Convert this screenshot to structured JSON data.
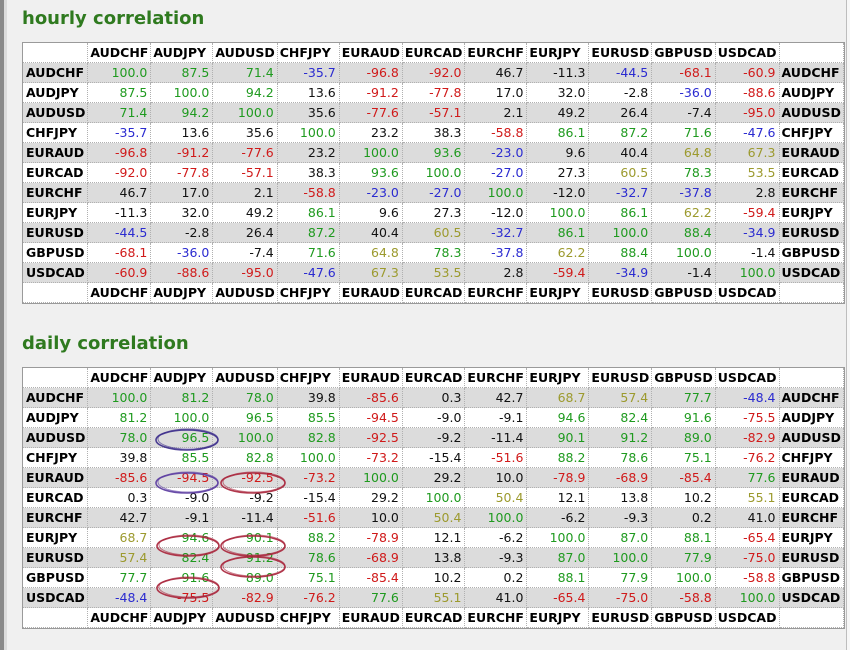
{
  "pairs": [
    "AUDCHF",
    "AUDJPY",
    "AUDUSD",
    "CHFJPY",
    "EURAUD",
    "EURCAD",
    "EURCHF",
    "EURJPY",
    "EURUSD",
    "GBPUSD",
    "USDCAD"
  ],
  "colors": {
    "green": "#1f9a1f",
    "olive": "#9c9a2e",
    "black": "#111111",
    "blue": "#2b2bd0",
    "red": "#d01a1a",
    "title": "#2f7a1f",
    "highlight": "#a8233a"
  },
  "sections": [
    {
      "title": "hourly correlation",
      "matrix": [
        [
          "100.0",
          "87.5",
          "71.4",
          "-35.7",
          "-96.8",
          "-92.0",
          "46.7",
          "-11.3",
          "-44.5",
          "-68.1",
          "-60.9"
        ],
        [
          "87.5",
          "100.0",
          "94.2",
          "13.6",
          "-91.2",
          "-77.8",
          "17.0",
          "32.0",
          "-2.8",
          "-36.0",
          "-88.6"
        ],
        [
          "71.4",
          "94.2",
          "100.0",
          "35.6",
          "-77.6",
          "-57.1",
          "2.1",
          "49.2",
          "26.4",
          "-7.4",
          "-95.0"
        ],
        [
          "-35.7",
          "13.6",
          "35.6",
          "100.0",
          "23.2",
          "38.3",
          "-58.8",
          "86.1",
          "87.2",
          "71.6",
          "-47.6"
        ],
        [
          "-96.8",
          "-91.2",
          "-77.6",
          "23.2",
          "100.0",
          "93.6",
          "-23.0",
          "9.6",
          "40.4",
          "64.8",
          "67.3"
        ],
        [
          "-92.0",
          "-77.8",
          "-57.1",
          "38.3",
          "93.6",
          "100.0",
          "-27.0",
          "27.3",
          "60.5",
          "78.3",
          "53.5"
        ],
        [
          "46.7",
          "17.0",
          "2.1",
          "-58.8",
          "-23.0",
          "-27.0",
          "100.0",
          "-12.0",
          "-32.7",
          "-37.8",
          "2.8"
        ],
        [
          "-11.3",
          "32.0",
          "49.2",
          "86.1",
          "9.6",
          "27.3",
          "-12.0",
          "100.0",
          "86.1",
          "62.2",
          "-59.4"
        ],
        [
          "-44.5",
          "-2.8",
          "26.4",
          "87.2",
          "40.4",
          "60.5",
          "-32.7",
          "86.1",
          "100.0",
          "88.4",
          "-34.9"
        ],
        [
          "-68.1",
          "-36.0",
          "-7.4",
          "71.6",
          "64.8",
          "78.3",
          "-37.8",
          "62.2",
          "88.4",
          "100.0",
          "-1.4"
        ],
        [
          "-60.9",
          "-88.6",
          "-95.0",
          "-47.6",
          "67.3",
          "53.5",
          "2.8",
          "-59.4",
          "-34.9",
          "-1.4",
          "100.0"
        ]
      ]
    },
    {
      "title": "daily correlation",
      "matrix": [
        [
          "100.0",
          "81.2",
          "78.0",
          "39.8",
          "-85.6",
          "0.3",
          "42.7",
          "68.7",
          "57.4",
          "77.7",
          "-48.4"
        ],
        [
          "81.2",
          "100.0",
          "96.5",
          "85.5",
          "-94.5",
          "-9.0",
          "-9.1",
          "94.6",
          "82.4",
          "91.6",
          "-75.5"
        ],
        [
          "78.0",
          "96.5",
          "100.0",
          "82.8",
          "-92.5",
          "-9.2",
          "-11.4",
          "90.1",
          "91.2",
          "89.0",
          "-82.9"
        ],
        [
          "39.8",
          "85.5",
          "82.8",
          "100.0",
          "-73.2",
          "-15.4",
          "-51.6",
          "88.2",
          "78.6",
          "75.1",
          "-76.2"
        ],
        [
          "-85.6",
          "-94.5",
          "-92.5",
          "-73.2",
          "100.0",
          "29.2",
          "10.0",
          "-78.9",
          "-68.9",
          "-85.4",
          "77.6"
        ],
        [
          "0.3",
          "-9.0",
          "-9.2",
          "-15.4",
          "29.2",
          "100.0",
          "50.4",
          "12.1",
          "13.8",
          "10.2",
          "55.1"
        ],
        [
          "42.7",
          "-9.1",
          "-11.4",
          "-51.6",
          "10.0",
          "50.4",
          "100.0",
          "-6.2",
          "-9.3",
          "0.2",
          "41.0"
        ],
        [
          "68.7",
          "94.6",
          "90.1",
          "88.2",
          "-78.9",
          "12.1",
          "-6.2",
          "100.0",
          "87.0",
          "88.1",
          "-65.4"
        ],
        [
          "57.4",
          "82.4",
          "91.2",
          "78.6",
          "-68.9",
          "13.8",
          "-9.3",
          "87.0",
          "100.0",
          "77.9",
          "-75.0"
        ],
        [
          "77.7",
          "91.6",
          "89.0",
          "75.1",
          "-85.4",
          "10.2",
          "0.2",
          "88.1",
          "77.9",
          "100.0",
          "-58.8"
        ],
        [
          "-48.4",
          "-75.5",
          "-82.9",
          "-76.2",
          "77.6",
          "55.1",
          "41.0",
          "-65.4",
          "-75.0",
          "-58.8",
          "100.0"
        ]
      ]
    }
  ]
}
